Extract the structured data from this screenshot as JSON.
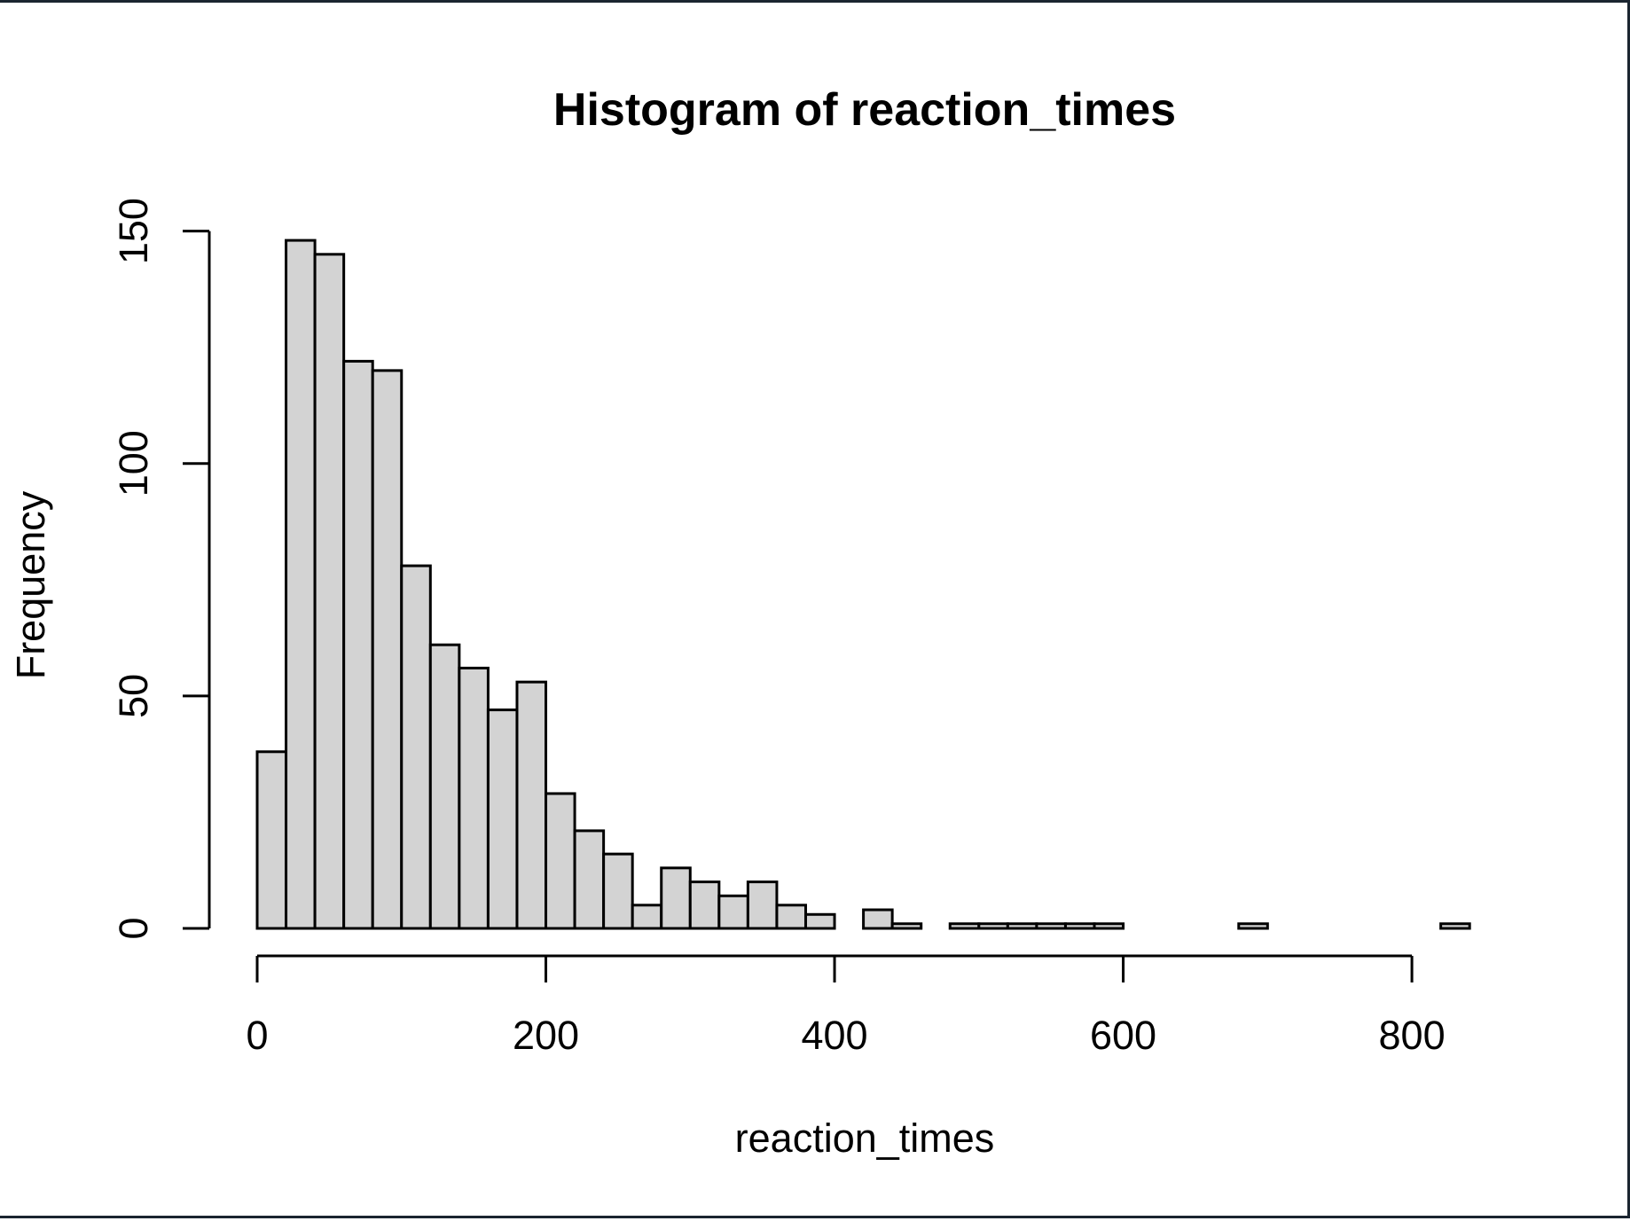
{
  "chart_data": {
    "type": "bar",
    "title": "Histogram of reaction_times",
    "xlabel": "reaction_times",
    "ylabel": "Frequency",
    "bin_width": 20,
    "bin_start": 0,
    "values": [
      38,
      148,
      145,
      122,
      120,
      78,
      61,
      56,
      47,
      53,
      29,
      21,
      16,
      5,
      13,
      10,
      7,
      10,
      5,
      3,
      0,
      4,
      1,
      0,
      1,
      1,
      1,
      1,
      1,
      1,
      0,
      0,
      0,
      0,
      1,
      0,
      0,
      0,
      0,
      0,
      0,
      1
    ],
    "xlim": [
      0,
      840
    ],
    "ylim": [
      0,
      150
    ],
    "x_ticks": [
      0,
      200,
      400,
      600,
      800
    ],
    "y_ticks": [
      0,
      50,
      100,
      150
    ],
    "grid": false,
    "colors": {
      "bar_fill": "#d3d3d3",
      "bar_stroke": "#000000"
    }
  }
}
